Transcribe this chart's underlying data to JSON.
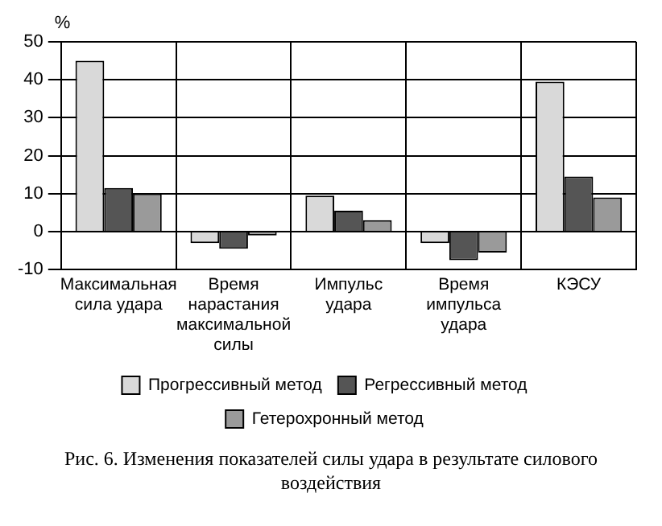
{
  "chart_data": {
    "type": "bar",
    "ylabel": "%",
    "categories": [
      "Максимальная сила удара",
      "Время нарастания максимальной силы",
      "Импульс удара",
      "Время импульса удара",
      "КЭСУ"
    ],
    "series": [
      {
        "name": "Прогрессивный метод",
        "color": "#d9d9d9",
        "values": [
          45,
          -3,
          9.5,
          -3,
          39.5
        ]
      },
      {
        "name": "Регрессивный метод",
        "color": "#555555",
        "values": [
          11.5,
          -4.5,
          5.5,
          -7.5,
          14.5
        ]
      },
      {
        "name": "Гетерохронный метод",
        "color": "#9a9a9a",
        "values": [
          10,
          -1,
          3,
          -5.5,
          9
        ]
      }
    ],
    "ylim": [
      -10,
      50
    ],
    "yticks": [
      -10,
      0,
      10,
      20,
      30,
      40,
      50
    ],
    "grid": true,
    "legend": "bottom",
    "annotations": [
      "Рис. 6. Изменения показателей силы удара в результате силового воздействия"
    ]
  }
}
